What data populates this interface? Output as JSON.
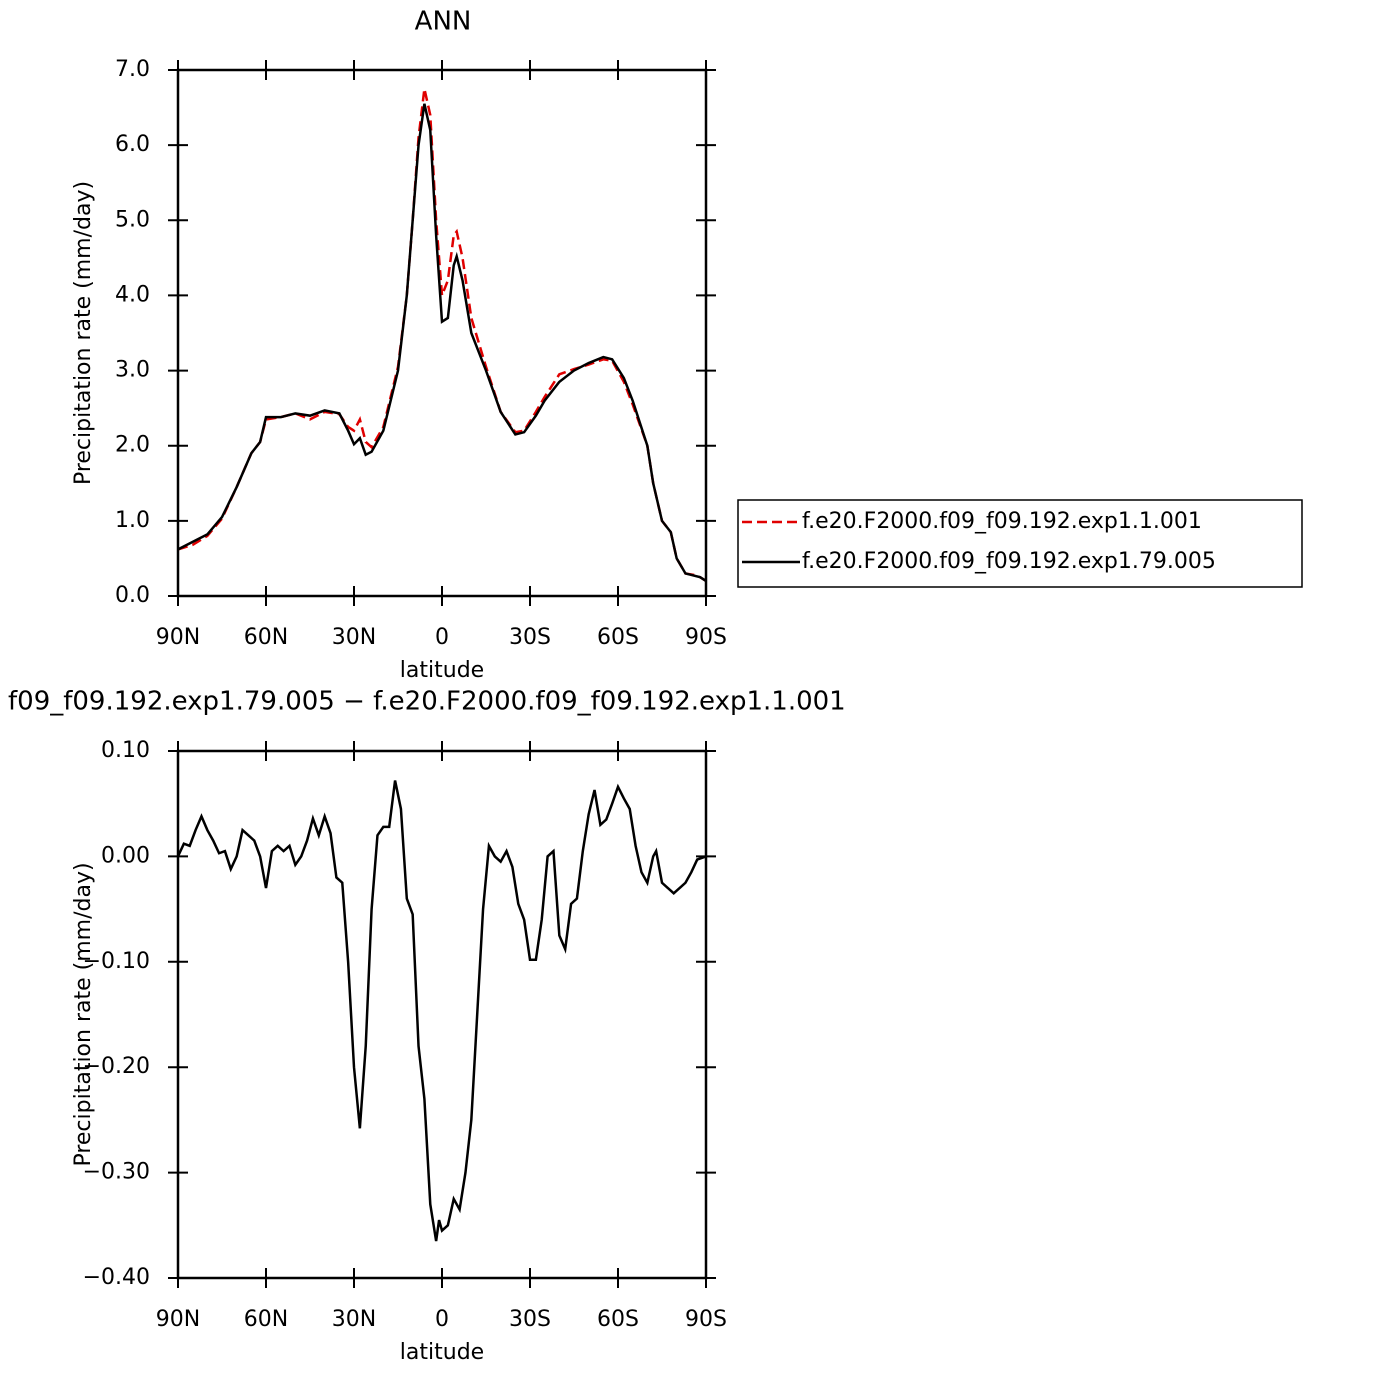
{
  "chart_data": [
    {
      "type": "line",
      "title": "ANN",
      "xlabel": "latitude",
      "ylabel": "Precipitation rate (mm/day)",
      "xlim": [
        90,
        -90
      ],
      "ylim": [
        0,
        7
      ],
      "xticks": [
        {
          "value": 90,
          "label": "90N"
        },
        {
          "value": 60,
          "label": "60N"
        },
        {
          "value": 30,
          "label": "30N"
        },
        0,
        {
          "value": -30,
          "label": "30S"
        },
        {
          "value": -60,
          "label": "60S"
        },
        {
          "value": -90,
          "label": "90S"
        }
      ],
      "yticks": [
        {
          "value": 0,
          "label": "0.0"
        },
        {
          "value": 1,
          "label": "1.0"
        },
        {
          "value": 2,
          "label": "2.0"
        },
        {
          "value": 3,
          "label": "3.0"
        },
        {
          "value": 4,
          "label": "4.0"
        },
        {
          "value": 5,
          "label": "5.0"
        },
        {
          "value": 6,
          "label": "6.0"
        },
        {
          "value": 7,
          "label": "7.0"
        }
      ],
      "legend": true,
      "x": [
        90,
        85,
        80,
        75,
        70,
        65,
        62,
        60,
        55,
        50,
        45,
        40,
        35,
        32,
        30,
        28,
        26,
        24,
        20,
        15,
        12,
        10,
        8,
        6,
        4,
        2,
        0,
        -2,
        -4,
        -5,
        -7,
        -10,
        -15,
        -20,
        -25,
        -28,
        -32,
        -35,
        -40,
        -45,
        -50,
        -55,
        -58,
        -62,
        -65,
        -70,
        -72,
        -75,
        -78,
        -80,
        -83,
        -86,
        -88,
        -90
      ],
      "series": [
        {
          "name": "f.e20.F2000.f09_f09.192.exp1.1.001",
          "color": "#e00000",
          "dash": true,
          "values": [
            0.62,
            0.68,
            0.8,
            1.03,
            1.45,
            1.9,
            2.05,
            2.35,
            2.38,
            2.43,
            2.35,
            2.45,
            2.42,
            2.25,
            2.2,
            2.35,
            2.05,
            1.98,
            2.25,
            3.05,
            4.0,
            5.0,
            6.1,
            6.75,
            6.4,
            5.0,
            4.0,
            4.2,
            4.8,
            4.85,
            4.5,
            3.7,
            3.05,
            2.45,
            2.18,
            2.2,
            2.45,
            2.65,
            2.95,
            3.02,
            3.08,
            3.15,
            3.13,
            2.85,
            2.55,
            2.0,
            1.5,
            1.0,
            0.85,
            0.5,
            0.3,
            0.28,
            0.25,
            0.2
          ]
        },
        {
          "name": "f.e20.F2000.f09_f09.192.exp1.79.005",
          "color": "#000000",
          "dash": false,
          "values": [
            0.62,
            0.72,
            0.82,
            1.05,
            1.45,
            1.9,
            2.05,
            2.38,
            2.38,
            2.43,
            2.4,
            2.47,
            2.43,
            2.2,
            2.02,
            2.1,
            1.88,
            1.92,
            2.2,
            3.0,
            4.0,
            5.0,
            6.0,
            6.55,
            6.2,
            4.8,
            3.65,
            3.7,
            4.4,
            4.52,
            4.2,
            3.5,
            3.0,
            2.45,
            2.15,
            2.18,
            2.4,
            2.6,
            2.85,
            3.0,
            3.1,
            3.18,
            3.15,
            2.9,
            2.6,
            2.0,
            1.5,
            1.0,
            0.85,
            0.5,
            0.3,
            0.27,
            0.25,
            0.2
          ]
        }
      ]
    },
    {
      "type": "line",
      "title": "f09_f09.192.exp1.79.005 − f.e20.F2000.f09_f09.192.exp1.1.001",
      "xlabel": "latitude",
      "ylabel": "Precipitation rate (mm/day)",
      "xlim": [
        90,
        -90
      ],
      "ylim": [
        -0.4,
        0.1
      ],
      "xticks": [
        {
          "value": 90,
          "label": "90N"
        },
        {
          "value": 60,
          "label": "60N"
        },
        {
          "value": 30,
          "label": "30N"
        },
        0,
        {
          "value": -30,
          "label": "30S"
        },
        {
          "value": -60,
          "label": "60S"
        },
        {
          "value": -90,
          "label": "90S"
        }
      ],
      "yticks": [
        {
          "value": -0.4,
          "label": "−0.40"
        },
        {
          "value": -0.3,
          "label": "−0.30"
        },
        {
          "value": -0.2,
          "label": "−0.20"
        },
        {
          "value": -0.1,
          "label": "−0.10"
        },
        {
          "value": 0,
          "label": "0.00"
        },
        {
          "value": 0.1,
          "label": "0.10"
        }
      ],
      "legend": false,
      "x": [
        90,
        88,
        86,
        84,
        82,
        80,
        78,
        76,
        74,
        72,
        70,
        68,
        66,
        64,
        62,
        60,
        58,
        56,
        54,
        52,
        50,
        48,
        46,
        44,
        42,
        40,
        38,
        36,
        34,
        32,
        30,
        28,
        26,
        24,
        22,
        20,
        18,
        16,
        14,
        12,
        10,
        8,
        6,
        4,
        2,
        1,
        0,
        -2,
        -4,
        -6,
        -8,
        -10,
        -12,
        -14,
        -16,
        -18,
        -20,
        -22,
        -24,
        -26,
        -28,
        -30,
        -32,
        -34,
        -36,
        -38,
        -40,
        -42,
        -44,
        -46,
        -48,
        -50,
        -52,
        -54,
        -56,
        -58,
        -60,
        -62,
        -64,
        -66,
        -68,
        -70,
        -72,
        -73,
        -75,
        -77,
        -79,
        -81,
        -83,
        -85,
        -87,
        -90
      ],
      "series": [
        {
          "color": "#000000",
          "dash": false,
          "values": [
            0.0,
            0.012,
            0.01,
            0.025,
            0.038,
            0.025,
            0.015,
            0.003,
            0.005,
            -0.012,
            0.0,
            0.025,
            0.02,
            0.015,
            0.0,
            -0.03,
            0.005,
            0.01,
            0.005,
            0.01,
            -0.008,
            0.0,
            0.015,
            0.036,
            0.02,
            0.038,
            0.022,
            -0.02,
            -0.025,
            -0.1,
            -0.2,
            -0.258,
            -0.18,
            -0.05,
            0.02,
            0.028,
            0.028,
            0.072,
            0.045,
            -0.04,
            -0.055,
            -0.18,
            -0.23,
            -0.33,
            -0.365,
            -0.345,
            -0.355,
            -0.35,
            -0.325,
            -0.335,
            -0.3,
            -0.25,
            -0.15,
            -0.05,
            0.01,
            0.0,
            -0.005,
            0.005,
            -0.01,
            -0.045,
            -0.06,
            -0.098,
            -0.098,
            -0.06,
            0.0,
            0.005,
            -0.075,
            -0.088,
            -0.045,
            -0.04,
            0.005,
            0.04,
            0.063,
            0.03,
            0.035,
            0.05,
            0.066,
            0.055,
            0.045,
            0.01,
            -0.015,
            -0.025,
            0.0,
            0.005,
            -0.025,
            -0.03,
            -0.035,
            -0.03,
            -0.025,
            -0.015,
            -0.003,
            0.0
          ]
        }
      ]
    }
  ]
}
